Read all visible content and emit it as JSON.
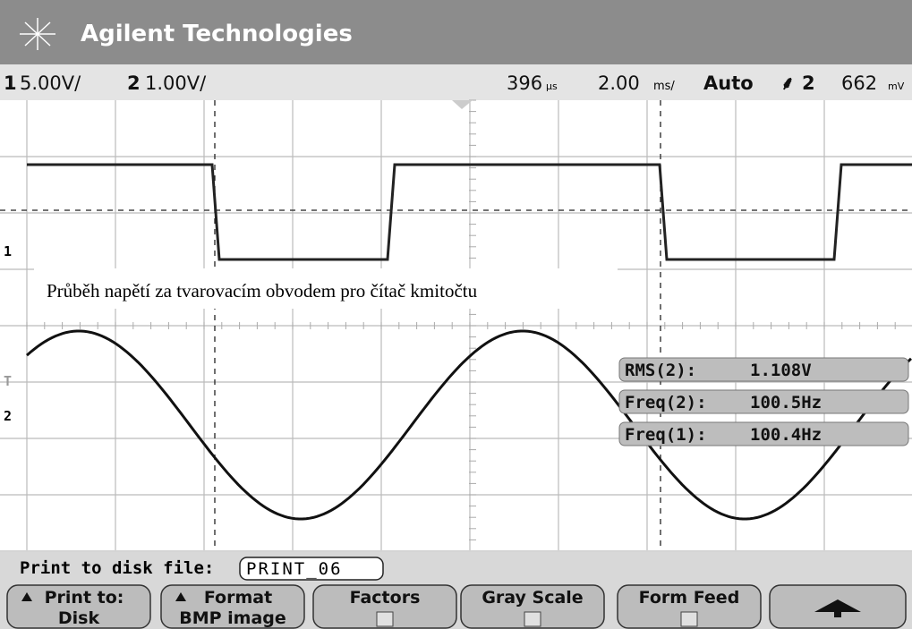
{
  "header": {
    "brand": "Agilent Technologies"
  },
  "status": {
    "ch1_num": "1",
    "ch1_scale": "5.00V/",
    "ch2_num": "2",
    "ch2_scale": "1.00V/",
    "delay": "396",
    "delay_unit": "µs",
    "timebase": "2.00",
    "timebase_unit": "ms/",
    "mode": "Auto",
    "trigger_source": "2",
    "trigger_level": "662",
    "trigger_unit": "mV"
  },
  "markers": {
    "ch1": "1",
    "trigger": "T",
    "ch2": "2"
  },
  "annotation": "Průběh napětí za tvarovacím obvodem  pro čítač kmitočtu",
  "measurements": [
    {
      "label": "RMS(2):",
      "value": "1.108V"
    },
    {
      "label": "Freq(2):",
      "value": "100.5Hz"
    },
    {
      "label": "Freq(1):",
      "value": "100.4Hz"
    }
  ],
  "print_line": {
    "label": "Print to disk file:",
    "file": "PRINT_06"
  },
  "softkeys": [
    {
      "top": "Print to:",
      "bottom": "Disk"
    },
    {
      "top": "Format",
      "bottom": "BMP image"
    },
    {
      "top": "Factors"
    },
    {
      "top": "Gray Scale"
    },
    {
      "top": "Form Feed"
    }
  ]
}
